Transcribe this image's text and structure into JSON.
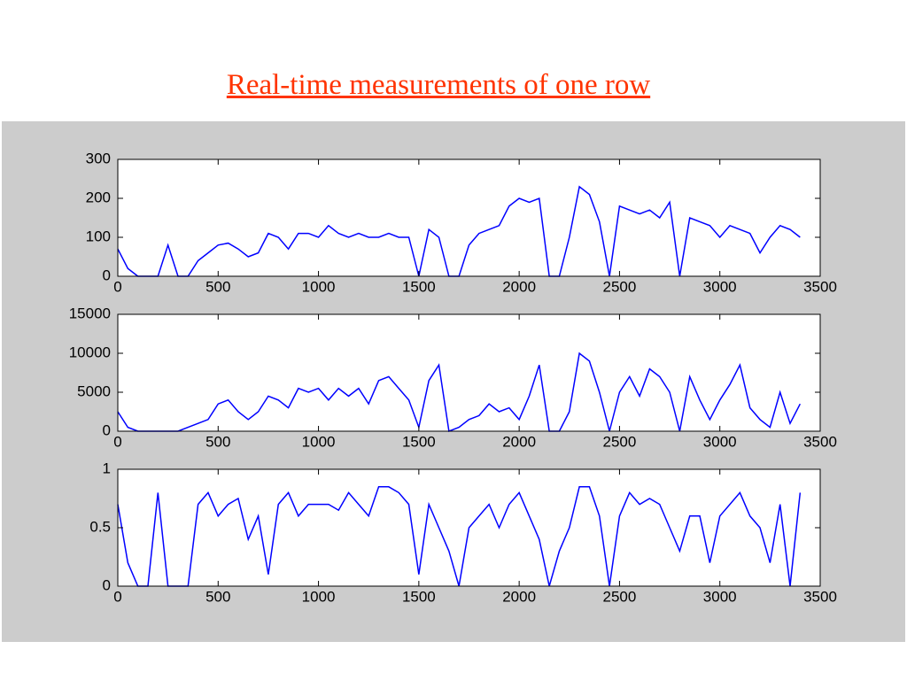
{
  "title": "Real-time measurements of one row",
  "chart_data": [
    {
      "type": "line",
      "color": "#0000ff",
      "x": [
        0,
        50,
        100,
        150,
        200,
        250,
        300,
        350,
        400,
        450,
        500,
        550,
        600,
        650,
        700,
        750,
        800,
        850,
        900,
        950,
        1000,
        1050,
        1100,
        1150,
        1200,
        1250,
        1300,
        1350,
        1400,
        1450,
        1500,
        1550,
        1600,
        1650,
        1700,
        1750,
        1800,
        1850,
        1900,
        1950,
        2000,
        2050,
        2100,
        2150,
        2200,
        2250,
        2300,
        2350,
        2400,
        2450,
        2500,
        2550,
        2600,
        2650,
        2700,
        2750,
        2800,
        2850,
        2900,
        2950,
        3000,
        3050,
        3100,
        3150,
        3200,
        3250,
        3300,
        3350,
        3400
      ],
      "values": [
        70,
        20,
        0,
        0,
        0,
        80,
        0,
        0,
        40,
        60,
        80,
        85,
        70,
        50,
        60,
        110,
        100,
        70,
        110,
        110,
        100,
        130,
        110,
        100,
        110,
        100,
        100,
        110,
        100,
        100,
        0,
        120,
        100,
        0,
        0,
        80,
        110,
        120,
        130,
        180,
        200,
        190,
        200,
        0,
        0,
        100,
        230,
        210,
        140,
        0,
        180,
        170,
        160,
        170,
        150,
        190,
        0,
        150,
        140,
        130,
        100,
        130,
        120,
        110,
        60,
        100,
        130,
        120,
        100
      ],
      "xlim": [
        0,
        3500
      ],
      "xticks": [
        0,
        500,
        1000,
        1500,
        2000,
        2500,
        3000,
        3500
      ],
      "ylim": [
        0,
        300
      ],
      "yticks": [
        0,
        100,
        200,
        300
      ]
    },
    {
      "type": "line",
      "color": "#0000ff",
      "x": [
        0,
        50,
        100,
        150,
        200,
        250,
        300,
        350,
        400,
        450,
        500,
        550,
        600,
        650,
        700,
        750,
        800,
        850,
        900,
        950,
        1000,
        1050,
        1100,
        1150,
        1200,
        1250,
        1300,
        1350,
        1400,
        1450,
        1500,
        1550,
        1600,
        1650,
        1700,
        1750,
        1800,
        1850,
        1900,
        1950,
        2000,
        2050,
        2100,
        2150,
        2200,
        2250,
        2300,
        2350,
        2400,
        2450,
        2500,
        2550,
        2600,
        2650,
        2700,
        2750,
        2800,
        2850,
        2900,
        2950,
        3000,
        3050,
        3100,
        3150,
        3200,
        3250,
        3300,
        3350,
        3400
      ],
      "values": [
        2500,
        500,
        0,
        0,
        0,
        0,
        0,
        500,
        1000,
        1500,
        3500,
        4000,
        2500,
        1500,
        2500,
        4500,
        4000,
        3000,
        5500,
        5000,
        5500,
        4000,
        5500,
        4500,
        5500,
        3500,
        6500,
        7000,
        5500,
        4000,
        500,
        6500,
        8500,
        0,
        500,
        1500,
        2000,
        3500,
        2500,
        3000,
        1500,
        4500,
        8500,
        0,
        0,
        2500,
        10000,
        9000,
        5000,
        0,
        5000,
        7000,
        4500,
        8000,
        7000,
        5000,
        0,
        7000,
        4000,
        1500,
        4000,
        6000,
        8500,
        3000,
        1500,
        500,
        5000,
        1000,
        3500
      ],
      "xlim": [
        0,
        3500
      ],
      "xticks": [
        0,
        500,
        1000,
        1500,
        2000,
        2500,
        3000,
        3500
      ],
      "ylim": [
        0,
        15000
      ],
      "yticks": [
        0,
        5000,
        10000,
        15000
      ]
    },
    {
      "type": "line",
      "color": "#0000ff",
      "x": [
        0,
        50,
        100,
        150,
        200,
        250,
        300,
        350,
        400,
        450,
        500,
        550,
        600,
        650,
        700,
        750,
        800,
        850,
        900,
        950,
        1000,
        1050,
        1100,
        1150,
        1200,
        1250,
        1300,
        1350,
        1400,
        1450,
        1500,
        1550,
        1600,
        1650,
        1700,
        1750,
        1800,
        1850,
        1900,
        1950,
        2000,
        2050,
        2100,
        2150,
        2200,
        2250,
        2300,
        2350,
        2400,
        2450,
        2500,
        2550,
        2600,
        2650,
        2700,
        2750,
        2800,
        2850,
        2900,
        2950,
        3000,
        3050,
        3100,
        3150,
        3200,
        3250,
        3300,
        3350,
        3400
      ],
      "values": [
        0.7,
        0.2,
        0,
        0,
        0.8,
        0,
        0,
        0,
        0.7,
        0.8,
        0.6,
        0.7,
        0.75,
        0.4,
        0.6,
        0.1,
        0.7,
        0.8,
        0.6,
        0.7,
        0.7,
        0.7,
        0.65,
        0.8,
        0.7,
        0.6,
        0.85,
        0.85,
        0.8,
        0.7,
        0.1,
        0.7,
        0.5,
        0.3,
        0,
        0.5,
        0.6,
        0.7,
        0.5,
        0.7,
        0.8,
        0.6,
        0.4,
        0,
        0.3,
        0.5,
        0.85,
        0.85,
        0.6,
        0,
        0.6,
        0.8,
        0.7,
        0.75,
        0.7,
        0.5,
        0.3,
        0.6,
        0.6,
        0.2,
        0.6,
        0.7,
        0.8,
        0.6,
        0.5,
        0.2,
        0.7,
        0,
        0.8
      ],
      "xlim": [
        0,
        3500
      ],
      "xticks": [
        0,
        500,
        1000,
        1500,
        2000,
        2500,
        3000,
        3500
      ],
      "ylim": [
        0,
        1
      ],
      "yticks": [
        0,
        0.5,
        1
      ]
    }
  ]
}
